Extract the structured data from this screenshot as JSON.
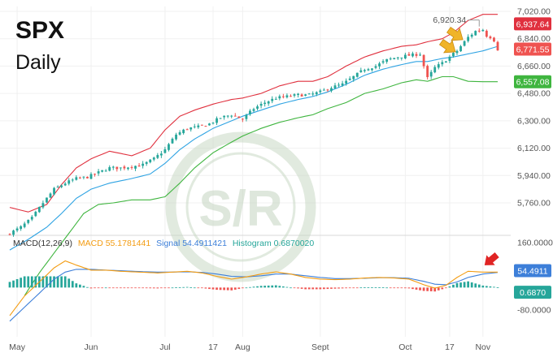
{
  "title": "SPX",
  "subtitle": "Daily",
  "watermark": "S/R",
  "colors": {
    "up": "#26a69a",
    "down": "#ef5350",
    "upper_band": "#e0303e",
    "middle_band": "#2ea3e3",
    "lower_band": "#3fb53f",
    "macd_line": "#f39c12",
    "signal_line": "#3d7fd9",
    "arrow": "#f0b429",
    "red_arrow": "#e02424",
    "watermark": "#c9d8c5"
  },
  "chart_data": {
    "type": "candlestick",
    "price_axis": {
      "ticks": [
        7020,
        6840,
        6660,
        6480,
        6300,
        6120,
        5940,
        5760
      ],
      "labels": [
        "7,020.00",
        "6,840.00",
        "6,660.00",
        "6,480.00",
        "6,300.00",
        "6,120.00",
        "5,940.00",
        "5,760.00"
      ]
    },
    "x_axis": {
      "labels": [
        "May",
        "Jun",
        "Jul",
        "17",
        "Aug",
        "Sept",
        "Oct",
        "17",
        "Nov"
      ],
      "label_index": [
        2,
        22,
        42,
        55,
        63,
        84,
        107,
        119,
        128
      ]
    },
    "num_bars": 133,
    "price_key": [
      [
        0,
        5560
      ],
      [
        3,
        5600
      ],
      [
        6,
        5660
      ],
      [
        9,
        5760
      ],
      [
        12,
        5850
      ],
      [
        15,
        5890
      ],
      [
        18,
        5920
      ],
      [
        21,
        5930
      ],
      [
        24,
        5960
      ],
      [
        27,
        5990
      ],
      [
        30,
        5990
      ],
      [
        33,
        6000
      ],
      [
        36,
        6010
      ],
      [
        39,
        6050
      ],
      [
        42,
        6110
      ],
      [
        45,
        6210
      ],
      [
        48,
        6250
      ],
      [
        51,
        6260
      ],
      [
        54,
        6280
      ],
      [
        57,
        6320
      ],
      [
        60,
        6340
      ],
      [
        63,
        6310
      ],
      [
        66,
        6380
      ],
      [
        69,
        6420
      ],
      [
        72,
        6450
      ],
      [
        75,
        6460
      ],
      [
        78,
        6470
      ],
      [
        81,
        6470
      ],
      [
        84,
        6490
      ],
      [
        87,
        6520
      ],
      [
        90,
        6540
      ],
      [
        93,
        6590
      ],
      [
        96,
        6640
      ],
      [
        99,
        6660
      ],
      [
        102,
        6700
      ],
      [
        105,
        6720
      ],
      [
        108,
        6730
      ],
      [
        111,
        6740
      ],
      [
        113,
        6580
      ],
      [
        115,
        6650
      ],
      [
        117,
        6680
      ],
      [
        119,
        6720
      ],
      [
        121,
        6760
      ],
      [
        124,
        6850
      ],
      [
        126,
        6890
      ],
      [
        128,
        6900
      ],
      [
        129,
        6860
      ],
      [
        130,
        6851
      ],
      [
        131,
        6830
      ],
      [
        132,
        6771
      ]
    ],
    "bollinger": {
      "upper": [
        [
          0,
          5730
        ],
        [
          5,
          5700
        ],
        [
          10,
          5750
        ],
        [
          14,
          5880
        ],
        [
          18,
          5990
        ],
        [
          22,
          6050
        ],
        [
          27,
          6100
        ],
        [
          33,
          6070
        ],
        [
          38,
          6120
        ],
        [
          42,
          6240
        ],
        [
          46,
          6330
        ],
        [
          50,
          6370
        ],
        [
          55,
          6410
        ],
        [
          60,
          6440
        ],
        [
          63,
          6450
        ],
        [
          68,
          6480
        ],
        [
          73,
          6530
        ],
        [
          78,
          6560
        ],
        [
          82,
          6560
        ],
        [
          86,
          6590
        ],
        [
          91,
          6660
        ],
        [
          96,
          6720
        ],
        [
          101,
          6760
        ],
        [
          106,
          6790
        ],
        [
          110,
          6800
        ],
        [
          113,
          6820
        ],
        [
          117,
          6840
        ],
        [
          120,
          6880
        ],
        [
          124,
          6960
        ],
        [
          128,
          7000
        ],
        [
          132,
          7000
        ]
      ],
      "middle": [
        [
          0,
          5450
        ],
        [
          5,
          5520
        ],
        [
          10,
          5600
        ],
        [
          14,
          5690
        ],
        [
          18,
          5790
        ],
        [
          22,
          5850
        ],
        [
          27,
          5890
        ],
        [
          33,
          5920
        ],
        [
          38,
          5950
        ],
        [
          42,
          6020
        ],
        [
          46,
          6110
        ],
        [
          50,
          6180
        ],
        [
          55,
          6250
        ],
        [
          60,
          6300
        ],
        [
          63,
          6330
        ],
        [
          68,
          6370
        ],
        [
          73,
          6410
        ],
        [
          78,
          6440
        ],
        [
          82,
          6460
        ],
        [
          86,
          6490
        ],
        [
          91,
          6540
        ],
        [
          96,
          6600
        ],
        [
          101,
          6640
        ],
        [
          106,
          6670
        ],
        [
          110,
          6690
        ],
        [
          113,
          6690
        ],
        [
          117,
          6710
        ],
        [
          120,
          6720
        ],
        [
          124,
          6740
        ],
        [
          128,
          6760
        ],
        [
          132,
          6790
        ]
      ],
      "lower": [
        [
          4,
          5150
        ],
        [
          8,
          5300
        ],
        [
          12,
          5430
        ],
        [
          16,
          5560
        ],
        [
          20,
          5690
        ],
        [
          24,
          5750
        ],
        [
          28,
          5760
        ],
        [
          33,
          5780
        ],
        [
          38,
          5780
        ],
        [
          42,
          5800
        ],
        [
          46,
          5890
        ],
        [
          50,
          5990
        ],
        [
          55,
          6090
        ],
        [
          60,
          6160
        ],
        [
          63,
          6200
        ],
        [
          68,
          6250
        ],
        [
          73,
          6290
        ],
        [
          78,
          6320
        ],
        [
          82,
          6340
        ],
        [
          86,
          6380
        ],
        [
          91,
          6420
        ],
        [
          96,
          6480
        ],
        [
          101,
          6510
        ],
        [
          106,
          6550
        ],
        [
          110,
          6570
        ],
        [
          113,
          6560
        ],
        [
          117,
          6590
        ],
        [
          120,
          6590
        ],
        [
          124,
          6560
        ],
        [
          128,
          6557
        ],
        [
          132,
          6557
        ]
      ]
    },
    "price_badges": [
      {
        "value": 6937.64,
        "label": "6,937.64",
        "color": "#e0303e"
      },
      {
        "value": 6771.55,
        "label": "6,771.55",
        "color": "#ef5350"
      },
      {
        "value": 6557.08,
        "label": "6,557.08",
        "color": "#3fb53f"
      }
    ],
    "high_annotation": {
      "label": "6,920.34",
      "value": 6920.34,
      "bar": 127
    },
    "yellow_arrows": [
      {
        "bar": 123,
        "value": 6850
      },
      {
        "bar": 121,
        "value": 6770
      }
    ],
    "macd": {
      "header": {
        "name": "MACD(12,26,9)",
        "macd_label": "MACD 55.1781441",
        "signal_label": "Signal 54.4911421",
        "histogram_label": "Histogram 0.6870020"
      },
      "axis": {
        "ticks": [
          160,
          -80
        ],
        "labels": [
          "160.0000",
          "-80.0000"
        ]
      },
      "macd_key": [
        [
          0,
          -100
        ],
        [
          4,
          -30
        ],
        [
          8,
          20
        ],
        [
          12,
          70
        ],
        [
          15,
          95
        ],
        [
          18,
          80
        ],
        [
          22,
          62
        ],
        [
          26,
          62
        ],
        [
          30,
          58
        ],
        [
          35,
          55
        ],
        [
          40,
          52
        ],
        [
          44,
          55
        ],
        [
          48,
          58
        ],
        [
          52,
          52
        ],
        [
          56,
          40
        ],
        [
          60,
          30
        ],
        [
          64,
          38
        ],
        [
          68,
          48
        ],
        [
          72,
          56
        ],
        [
          76,
          48
        ],
        [
          80,
          36
        ],
        [
          84,
          30
        ],
        [
          88,
          28
        ],
        [
          92,
          30
        ],
        [
          96,
          34
        ],
        [
          100,
          36
        ],
        [
          104,
          34
        ],
        [
          108,
          30
        ],
        [
          112,
          10
        ],
        [
          115,
          -2
        ],
        [
          118,
          8
        ],
        [
          121,
          36
        ],
        [
          124,
          58
        ],
        [
          128,
          55
        ],
        [
          132,
          55
        ]
      ],
      "signal_key": [
        [
          0,
          -120
        ],
        [
          4,
          -70
        ],
        [
          8,
          -20
        ],
        [
          12,
          30
        ],
        [
          15,
          55
        ],
        [
          18,
          65
        ],
        [
          22,
          65
        ],
        [
          26,
          62
        ],
        [
          30,
          60
        ],
        [
          35,
          57
        ],
        [
          40,
          55
        ],
        [
          44,
          55
        ],
        [
          48,
          56
        ],
        [
          52,
          54
        ],
        [
          56,
          48
        ],
        [
          60,
          40
        ],
        [
          64,
          38
        ],
        [
          68,
          42
        ],
        [
          72,
          48
        ],
        [
          76,
          48
        ],
        [
          80,
          42
        ],
        [
          84,
          36
        ],
        [
          88,
          32
        ],
        [
          92,
          32
        ],
        [
          96,
          33
        ],
        [
          100,
          35
        ],
        [
          104,
          35
        ],
        [
          108,
          33
        ],
        [
          112,
          22
        ],
        [
          115,
          12
        ],
        [
          118,
          10
        ],
        [
          121,
          20
        ],
        [
          124,
          36
        ],
        [
          128,
          48
        ],
        [
          132,
          54
        ]
      ],
      "badges": [
        {
          "value": 54.49,
          "label": "54.4911",
          "color": "#3d7fd9"
        },
        {
          "value": 0.687,
          "label": "0.6870",
          "color": "#26a69a"
        }
      ],
      "red_arrow": {
        "bar": 128,
        "value": 62
      }
    }
  }
}
